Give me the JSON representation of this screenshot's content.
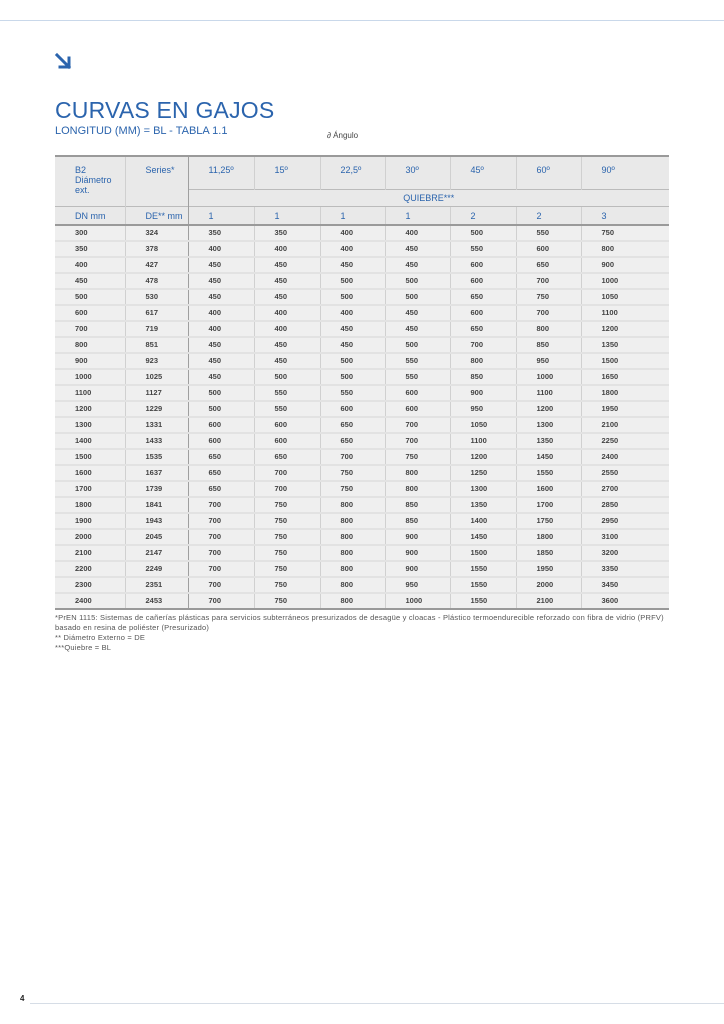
{
  "header": {
    "title": "CURVAS EN GAJOS",
    "subtitle": "LONGITUD (MM) = BL - TABLA 1.1",
    "angle_note": "∂ Ángulo",
    "accent_color": "#2b64ad",
    "icon": "arrow-down-right-icon"
  },
  "table": {
    "col_b2": "B2",
    "col_b2_line2": "Diámetro",
    "col_b2_line3": "ext.",
    "col_series": "Series*",
    "angles": [
      "11,25º",
      "15º",
      "22,5º",
      "30º",
      "45º",
      "60º",
      "90º"
    ],
    "quiebre_label": "QUIEBRE***",
    "dn_label": "DN mm",
    "de_label": "DE** mm",
    "quiebres": [
      "1",
      "1",
      "1",
      "1",
      "2",
      "2",
      "3"
    ],
    "rows": [
      [
        "300",
        "324",
        "350",
        "350",
        "400",
        "400",
        "500",
        "550",
        "750"
      ],
      [
        "350",
        "378",
        "400",
        "400",
        "400",
        "450",
        "550",
        "600",
        "800"
      ],
      [
        "400",
        "427",
        "450",
        "450",
        "450",
        "450",
        "600",
        "650",
        "900"
      ],
      [
        "450",
        "478",
        "450",
        "450",
        "500",
        "500",
        "600",
        "700",
        "1000"
      ],
      [
        "500",
        "530",
        "450",
        "450",
        "500",
        "500",
        "650",
        "750",
        "1050"
      ],
      [
        "600",
        "617",
        "400",
        "400",
        "400",
        "450",
        "600",
        "700",
        "1100"
      ],
      [
        "700",
        "719",
        "400",
        "400",
        "450",
        "450",
        "650",
        "800",
        "1200"
      ],
      [
        "800",
        "851",
        "450",
        "450",
        "450",
        "500",
        "700",
        "850",
        "1350"
      ],
      [
        "900",
        "923",
        "450",
        "450",
        "500",
        "550",
        "800",
        "950",
        "1500"
      ],
      [
        "1000",
        "1025",
        "450",
        "500",
        "500",
        "550",
        "850",
        "1000",
        "1650"
      ],
      [
        "1100",
        "1127",
        "500",
        "550",
        "550",
        "600",
        "900",
        "1100",
        "1800"
      ],
      [
        "1200",
        "1229",
        "500",
        "550",
        "600",
        "600",
        "950",
        "1200",
        "1950"
      ],
      [
        "1300",
        "1331",
        "600",
        "600",
        "650",
        "700",
        "1050",
        "1300",
        "2100"
      ],
      [
        "1400",
        "1433",
        "600",
        "600",
        "650",
        "700",
        "1100",
        "1350",
        "2250"
      ],
      [
        "1500",
        "1535",
        "650",
        "650",
        "700",
        "750",
        "1200",
        "1450",
        "2400"
      ],
      [
        "1600",
        "1637",
        "650",
        "700",
        "750",
        "800",
        "1250",
        "1550",
        "2550"
      ],
      [
        "1700",
        "1739",
        "650",
        "700",
        "750",
        "800",
        "1300",
        "1600",
        "2700"
      ],
      [
        "1800",
        "1841",
        "700",
        "750",
        "800",
        "850",
        "1350",
        "1700",
        "2850"
      ],
      [
        "1900",
        "1943",
        "700",
        "750",
        "800",
        "850",
        "1400",
        "1750",
        "2950"
      ],
      [
        "2000",
        "2045",
        "700",
        "750",
        "800",
        "900",
        "1450",
        "1800",
        "3100"
      ],
      [
        "2100",
        "2147",
        "700",
        "750",
        "800",
        "900",
        "1500",
        "1850",
        "3200"
      ],
      [
        "2200",
        "2249",
        "700",
        "750",
        "800",
        "900",
        "1550",
        "1950",
        "3350"
      ],
      [
        "2300",
        "2351",
        "700",
        "750",
        "800",
        "950",
        "1550",
        "2000",
        "3450"
      ],
      [
        "2400",
        "2453",
        "700",
        "750",
        "800",
        "1000",
        "1550",
        "2100",
        "3600"
      ]
    ]
  },
  "notes": [
    "*PrEN 1115: Sistemas de cañerías plásticas para servicios subterráneos presurizados de desagüe y cloacas - Plástico termoendurecible reforzado con fibra de vidrio (PRFV) basado en resina de poliéster (Presurizado)",
    "** Diámetro Externo = DE",
    "***Quiebre = BL"
  ],
  "page_number": "4"
}
